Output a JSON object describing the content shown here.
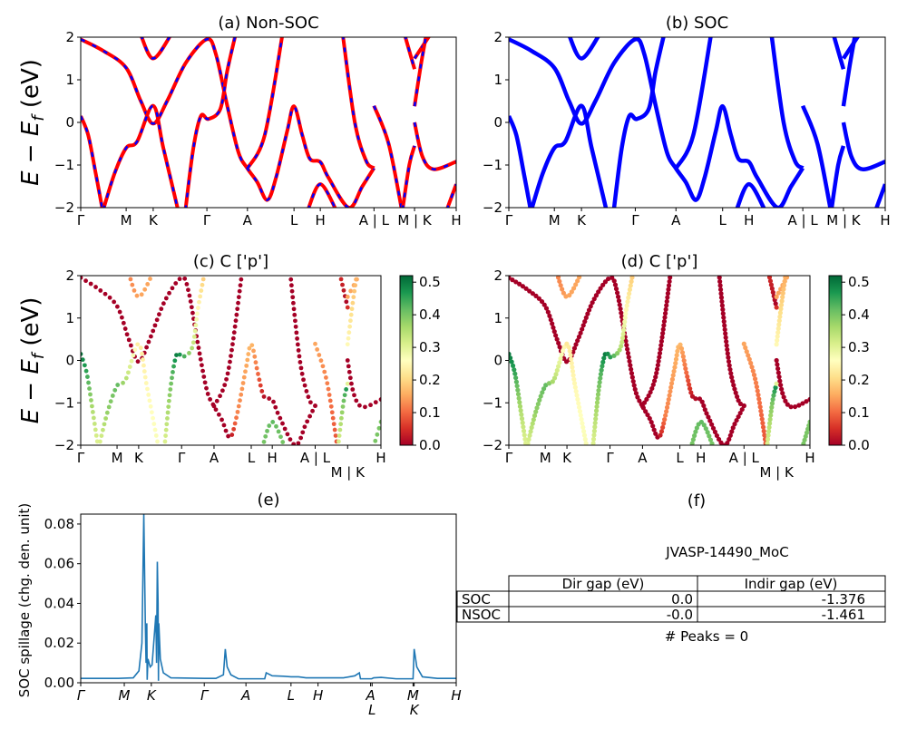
{
  "chart_data": [
    {
      "id": "a",
      "type": "line",
      "title": "(a) Non-SOC",
      "ylabel": {
        "main": "E − E",
        "sub": "f",
        "tail": " (eV)"
      },
      "ylim": [
        -2,
        2
      ],
      "yticks": [
        "2",
        "1",
        "0",
        "−1",
        "−2"
      ],
      "xticks": [
        {
          "x": 0,
          "label": "Γ"
        },
        {
          "x": 0.121,
          "label": "M"
        },
        {
          "x": 0.193,
          "label": "K"
        },
        {
          "x": 0.336,
          "label": "Γ"
        },
        {
          "x": 0.444,
          "label": "A"
        },
        {
          "x": 0.568,
          "label": "L"
        },
        {
          "x": 0.638,
          "label": "H"
        },
        {
          "x": 0.781,
          "label": "A | L"
        },
        {
          "x": 0.889,
          "label": "M | K"
        },
        {
          "x": 1.0,
          "label": "H"
        }
      ],
      "style": "red line with blue dashes"
    },
    {
      "id": "b",
      "type": "line",
      "title": "(b) SOC",
      "ylim": [
        -2,
        2
      ],
      "yticks": [
        "2",
        "1",
        "0",
        "−1",
        "−2"
      ],
      "style": "blue thick line"
    },
    {
      "id": "c",
      "type": "scatter",
      "title": "(c)  C ['p']",
      "ylabel": {
        "main": "E − E",
        "sub": "f",
        "tail": " (eV)"
      },
      "ylim": [
        -2,
        2
      ],
      "yticks": [
        "2",
        "1",
        "0",
        "−1",
        "−2"
      ],
      "colorbar": {
        "range": [
          0,
          0.52
        ],
        "ticks": [
          "0.0",
          "0.1",
          "0.2",
          "0.3",
          "0.4",
          "0.5"
        ],
        "colormap": "RdYlGn"
      }
    },
    {
      "id": "d",
      "type": "scatter",
      "title": "(d) C ['p']",
      "ylim": [
        -2,
        2
      ],
      "yticks": [
        "2",
        "1",
        "0",
        "−1",
        "−2"
      ],
      "colorbar": {
        "range": [
          0,
          0.52
        ],
        "ticks": [
          "0.0",
          "0.1",
          "0.2",
          "0.3",
          "0.4",
          "0.5"
        ],
        "colormap": "RdYlGn"
      }
    },
    {
      "id": "e",
      "type": "line",
      "title": "(e)",
      "ylabel": "SOC spillage (chg. den. unit)",
      "ylim": [
        0,
        0.085
      ],
      "yticks": [
        "0.00",
        "0.02",
        "0.04",
        "0.06",
        "0.08"
      ],
      "xticks": [
        {
          "x": 0,
          "label": "Γ"
        },
        {
          "x": 0.116,
          "label": "M"
        },
        {
          "x": 0.188,
          "label": "K"
        },
        {
          "x": 0.329,
          "label": "Γ"
        },
        {
          "x": 0.44,
          "label": "A"
        },
        {
          "x": 0.56,
          "label": "L"
        },
        {
          "x": 0.632,
          "label": "H"
        },
        {
          "x": 0.772,
          "label": "A"
        },
        {
          "x": 0.776,
          "label": "L"
        },
        {
          "x": 0.885,
          "label": "M"
        },
        {
          "x": 0.888,
          "label": "K"
        },
        {
          "x": 1.0,
          "label": "H"
        }
      ],
      "color": "#1f77b4",
      "points": [
        [
          0,
          0.0022
        ],
        [
          0.1,
          0.0022
        ],
        [
          0.14,
          0.0025
        ],
        [
          0.155,
          0.006
        ],
        [
          0.163,
          0.02
        ],
        [
          0.168,
          0.085
        ],
        [
          0.172,
          0.03
        ],
        [
          0.174,
          0.01
        ],
        [
          0.176,
          0.03
        ],
        [
          0.177,
          0.0015
        ],
        [
          0.179,
          0.012
        ],
        [
          0.185,
          0.008
        ],
        [
          0.19,
          0.009
        ],
        [
          0.2,
          0.034
        ],
        [
          0.202,
          0.01
        ],
        [
          0.204,
          0.061
        ],
        [
          0.206,
          0.04
        ],
        [
          0.207,
          0.001
        ],
        [
          0.208,
          0.03
        ],
        [
          0.212,
          0.012
        ],
        [
          0.22,
          0.005
        ],
        [
          0.24,
          0.0025
        ],
        [
          0.33,
          0.0022
        ],
        [
          0.36,
          0.0022
        ],
        [
          0.38,
          0.004
        ],
        [
          0.385,
          0.017
        ],
        [
          0.39,
          0.008
        ],
        [
          0.4,
          0.004
        ],
        [
          0.42,
          0.002
        ],
        [
          0.49,
          0.002
        ],
        [
          0.494,
          0.005
        ],
        [
          0.51,
          0.0035
        ],
        [
          0.54,
          0.0033
        ],
        [
          0.56,
          0.003
        ],
        [
          0.58,
          0.003
        ],
        [
          0.6,
          0.0025
        ],
        [
          0.7,
          0.0025
        ],
        [
          0.73,
          0.0035
        ],
        [
          0.742,
          0.005
        ],
        [
          0.745,
          0.002
        ],
        [
          0.775,
          0.002
        ],
        [
          0.78,
          0.0025
        ],
        [
          0.8,
          0.0027
        ],
        [
          0.84,
          0.002
        ],
        [
          0.885,
          0.002
        ],
        [
          0.888,
          0.017
        ],
        [
          0.895,
          0.008
        ],
        [
          0.91,
          0.003
        ],
        [
          0.95,
          0.0022
        ],
        [
          1.0,
          0.0022
        ]
      ]
    }
  ],
  "bands": [
    [
      [
        0,
        1.95,
        0
      ],
      [
        0.06,
        1.68,
        0
      ],
      [
        0.121,
        1.28,
        0
      ],
      [
        0.16,
        0.5,
        0
      ],
      [
        0.193,
        -0.03,
        0
      ],
      [
        0.23,
        0.5,
        0
      ],
      [
        0.28,
        1.4,
        0
      ],
      [
        0.336,
        1.95,
        0
      ],
      [
        0.36,
        1.6,
        0
      ],
      [
        0.39,
        0.4,
        0
      ],
      [
        0.42,
        -0.7,
        0
      ],
      [
        0.444,
        -1.08,
        0
      ],
      [
        0.47,
        -1.4,
        0
      ],
      [
        0.497,
        -1.82,
        0
      ],
      [
        0.52,
        -1.3,
        0.12
      ],
      [
        0.55,
        -0.2,
        0.15
      ],
      [
        0.568,
        0.38,
        0.17
      ],
      [
        0.59,
        -0.3,
        0.1
      ],
      [
        0.61,
        -0.85,
        0.02
      ],
      [
        0.638,
        -0.93,
        0
      ],
      [
        0.66,
        -1.3,
        0
      ],
      [
        0.714,
        -2.0,
        0
      ],
      [
        0.75,
        -1.5,
        0
      ],
      [
        0.781,
        -1.07,
        0
      ]
    ],
    [
      [
        0,
        0.15,
        0.5
      ],
      [
        0.02,
        -0.3,
        0.45
      ],
      [
        0.04,
        -1.2,
        0.35
      ],
      [
        0.058,
        -2.05,
        0.3
      ]
    ],
    [
      [
        0.06,
        -2.05,
        0.3
      ],
      [
        0.09,
        -1.2,
        0.38
      ],
      [
        0.121,
        -0.6,
        0.42
      ],
      [
        0.15,
        -0.45,
        0.35
      ],
      [
        0.193,
        0.39,
        0.22
      ],
      [
        0.22,
        -0.6,
        0.25
      ],
      [
        0.259,
        -2.05,
        0.27
      ]
    ],
    [
      [
        0.279,
        -2.05,
        0.3
      ],
      [
        0.3,
        -0.6,
        0.4
      ],
      [
        0.32,
        0.15,
        0.5
      ],
      [
        0.34,
        0.08,
        0.45
      ],
      [
        0.372,
        0.32,
        0.35
      ],
      [
        0.39,
        1.2,
        0.25
      ],
      [
        0.412,
        2.05,
        0.18
      ]
    ],
    [
      [
        0.16,
        2.05,
        0.12
      ],
      [
        0.193,
        1.5,
        0.15
      ],
      [
        0.24,
        2.05,
        0.15
      ]
    ],
    [
      [
        0.444,
        -1.08,
        0
      ],
      [
        0.49,
        -0.3,
        0
      ],
      [
        0.537,
        2.05,
        0
      ]
    ],
    [
      [
        0.605,
        -2.05,
        0.4
      ],
      [
        0.638,
        -1.45,
        0.42
      ],
      [
        0.68,
        -2.05,
        0.4
      ]
    ],
    [
      [
        0.698,
        2.05,
        0
      ],
      [
        0.73,
        0.0,
        0
      ],
      [
        0.76,
        -0.9,
        0
      ],
      [
        0.781,
        -1.07,
        0
      ]
    ],
    [
      [
        0.781,
        0.39,
        0.15
      ],
      [
        0.82,
        -0.5,
        0.12
      ],
      [
        0.855,
        -2.05,
        0.08
      ]
    ],
    [
      [
        0.857,
        -2.05,
        0.3
      ],
      [
        0.875,
        -1.0,
        0.4
      ],
      [
        0.889,
        -0.55,
        0.5
      ]
    ],
    [
      [
        0.889,
        0.0,
        0
      ],
      [
        0.91,
        -0.8,
        0
      ],
      [
        0.94,
        -1.1,
        0
      ],
      [
        1.0,
        -0.92,
        0
      ]
    ],
    [
      [
        0.863,
        2.05,
        0.05
      ],
      [
        0.889,
        1.25,
        0
      ]
    ],
    [
      [
        0.889,
        1.5,
        0.15
      ],
      [
        0.93,
        2.05,
        0.15
      ]
    ],
    [
      [
        0.889,
        0.38,
        0.25
      ],
      [
        0.905,
        1.3,
        0.2
      ],
      [
        0.92,
        2.05,
        0.15
      ]
    ],
    [
      [
        0.975,
        -2.05,
        0.4
      ],
      [
        1.0,
        -1.45,
        0.4
      ]
    ]
  ],
  "panel_f": {
    "title": "(f)",
    "material": "JVASP-14490_MoC",
    "table": {
      "headers": [
        "",
        "Dir gap (eV)",
        "Indir gap (eV)"
      ],
      "rows": [
        [
          "SOC",
          "0.0",
          "-1.376"
        ],
        [
          "NSOC",
          "-0.0",
          "-1.461"
        ]
      ]
    },
    "peaks": "# Peaks = 0"
  },
  "colors": {
    "nonsoc_line": "#ff0000",
    "nonsoc_dash": "#0000ff",
    "soc_line": "#0000ff",
    "spillage": "#1f77b4"
  }
}
